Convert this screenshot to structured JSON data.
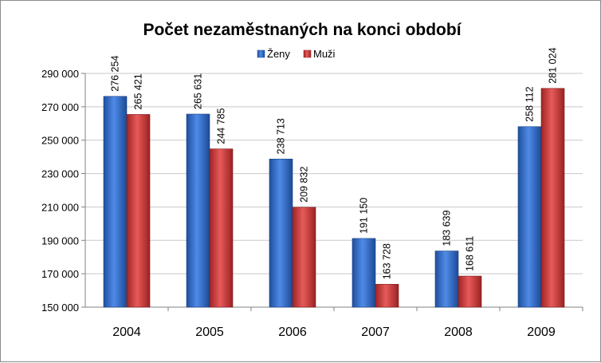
{
  "chart_data": {
    "type": "bar",
    "title": "Počet nezaměstnaných na konci období",
    "categories": [
      "2004",
      "2005",
      "2006",
      "2007",
      "2008",
      "2009"
    ],
    "series": [
      {
        "name": "Ženy",
        "color": "#2f6ad1",
        "values": [
          276254,
          265631,
          238713,
          191150,
          183639,
          258112
        ],
        "labels": [
          "276 254",
          "265 631",
          "238 713",
          "191 150",
          "183 639",
          "258 112"
        ]
      },
      {
        "name": "Muži",
        "color": "#d23b3b",
        "values": [
          265421,
          244785,
          209832,
          163728,
          168611,
          281024
        ],
        "labels": [
          "265 421",
          "244 785",
          "209 832",
          "163 728",
          "168 611",
          "281 024"
        ]
      }
    ],
    "ylim": [
      150000,
      290000
    ],
    "yticks": [
      150000,
      170000,
      190000,
      210000,
      230000,
      250000,
      270000,
      290000
    ],
    "ytick_labels": [
      "150 000",
      "170 000",
      "190 000",
      "210 000",
      "230 000",
      "250 000",
      "270 000",
      "290 000"
    ],
    "grid": true,
    "legend_position": "top"
  }
}
